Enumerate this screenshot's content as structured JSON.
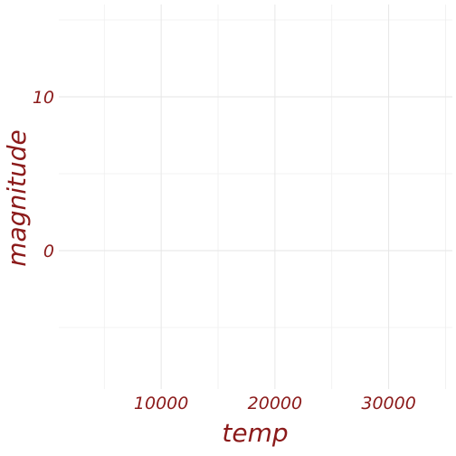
{
  "chart_data": {
    "type": "scatter",
    "title": "",
    "xlabel": "temp",
    "ylabel": "magnitude",
    "xlim": [
      1000,
      35600
    ],
    "ylim": [
      -9,
      16
    ],
    "x_ticks": [
      10000,
      20000,
      30000
    ],
    "x_tick_labels": [
      "10000",
      "20000",
      "30000"
    ],
    "x_minor_ticks": [
      5000,
      15000,
      25000,
      35000
    ],
    "y_ticks": [
      0,
      10
    ],
    "y_tick_labels": [
      "0",
      "10"
    ],
    "y_minor_ticks": [
      -5,
      5,
      15
    ],
    "grid": true,
    "series": [],
    "text_color": "#8b1a1a",
    "grid_color": "#e6e6e6"
  }
}
